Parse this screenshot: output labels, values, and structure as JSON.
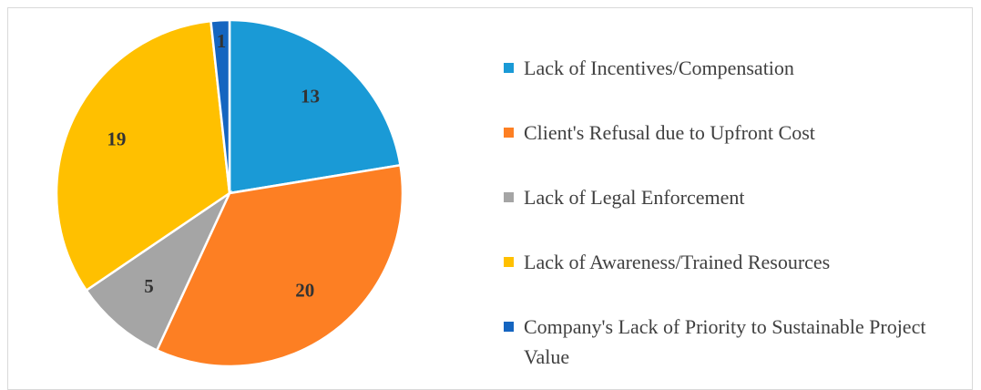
{
  "chart_data": {
    "type": "pie",
    "categories": [
      "Lack of Incentives/Compensation",
      "Client's Refusal due to Upfront Cost",
      "Lack of Legal Enforcement",
      "Lack of Awareness/Trained Resources",
      "Company's Lack of Priority to Sustainable Project Value"
    ],
    "values": [
      13,
      20,
      5,
      19,
      1
    ],
    "colors": [
      "#1a9ad6",
      "#fd7f23",
      "#a5a5a5",
      "#ffc000",
      "#1565c0"
    ],
    "legend": "right"
  }
}
